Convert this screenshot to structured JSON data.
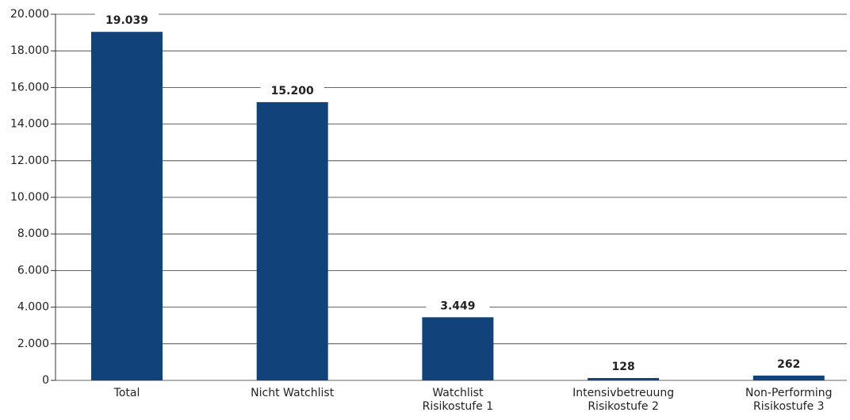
{
  "chart_data": {
    "type": "bar",
    "categories": [
      "Total",
      "Nicht Watchlist",
      "Watchlist\nRisikostufe 1",
      "Intensivbetreuung\nRisikostufe 2",
      "Non-Performing\nRisikostufe 3"
    ],
    "values": [
      19039,
      15200,
      3449,
      128,
      262
    ],
    "value_labels": [
      "19.039",
      "15.200",
      "3.449",
      "128",
      "262"
    ],
    "color": "#12427a",
    "ylim": [
      0,
      20000
    ],
    "yticks": [
      0,
      {
        "value": 2000,
        "label": "2.000"
      },
      {
        "value": 4000,
        "label": "4.000"
      },
      {
        "value": 6000,
        "label": "6.000"
      },
      {
        "value": 8000,
        "label": "8.000"
      },
      {
        "value": 10000,
        "label": "10.000"
      },
      {
        "value": 12000,
        "label": "12.000"
      },
      {
        "value": 14000,
        "label": "14.000"
      },
      {
        "value": 16000,
        "label": "16.000"
      },
      {
        "value": 18000,
        "label": "18.000"
      },
      {
        "value": 20000,
        "label": "20.000"
      }
    ],
    "grid": true
  }
}
